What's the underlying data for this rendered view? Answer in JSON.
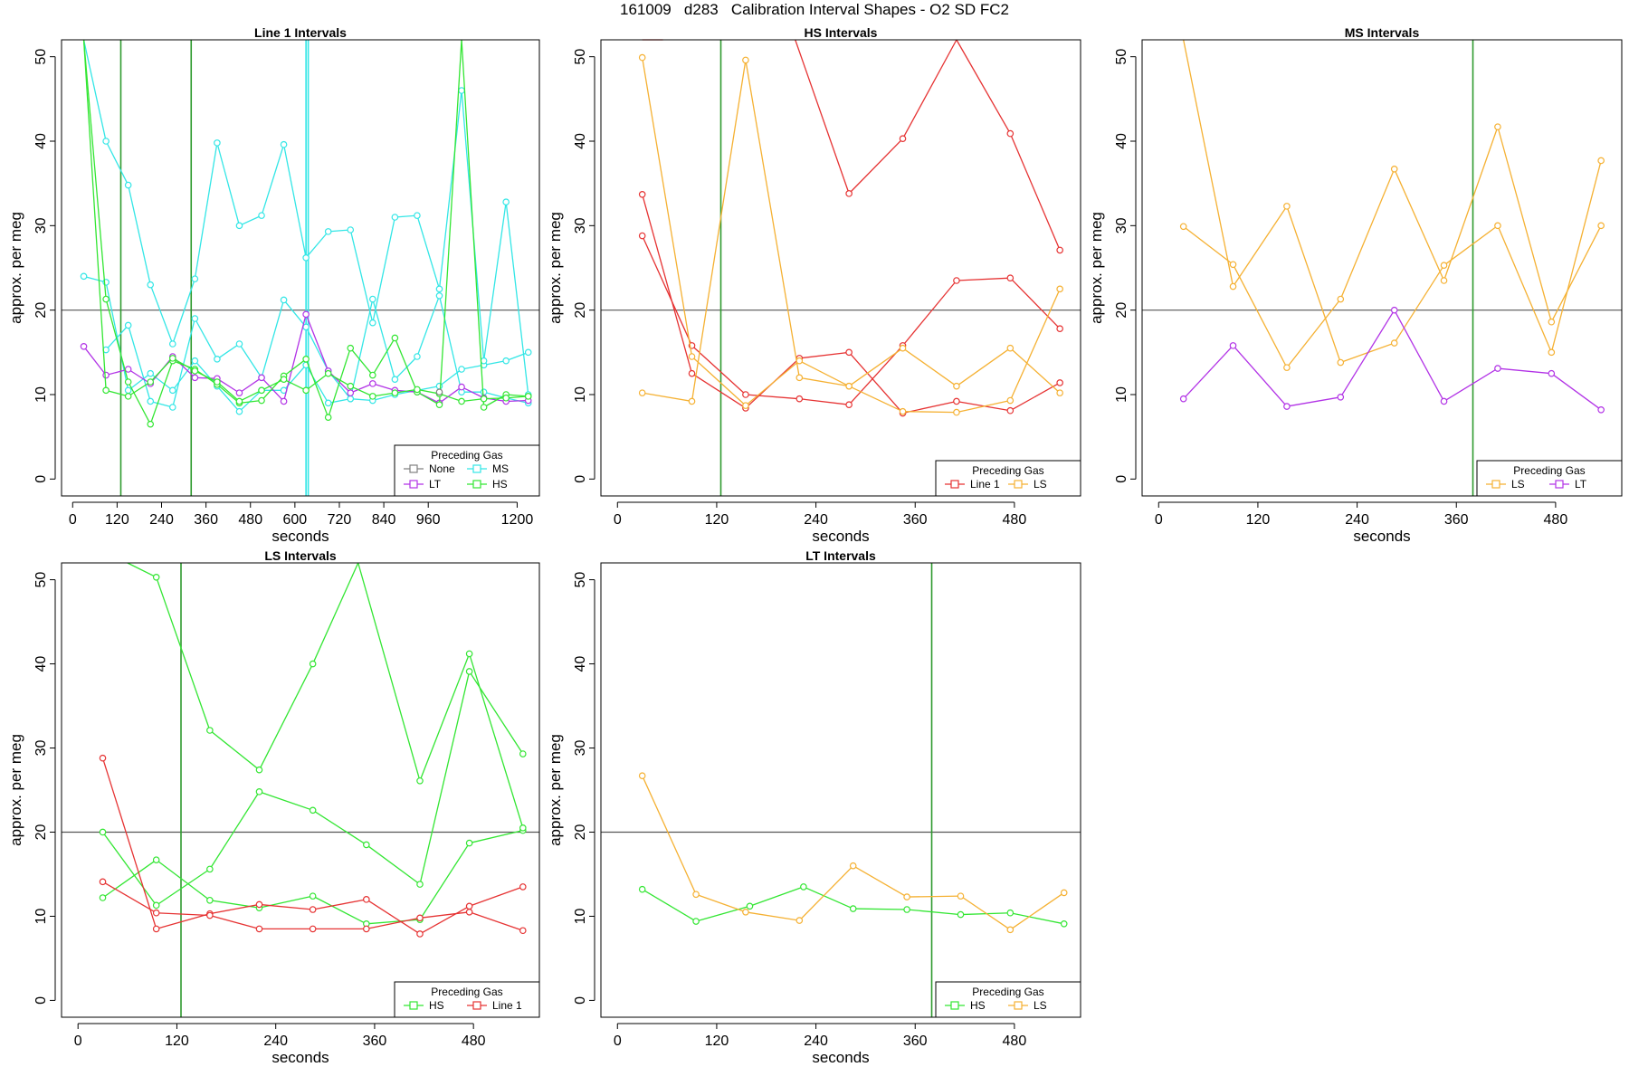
{
  "figure_title": "161009   d283   Calibration Interval Shapes - O2 SD FC2",
  "colors": {
    "None": "#808080",
    "MS": "#33e6e6",
    "LT": "#b233e6",
    "HS": "#33e633",
    "Line 1": "#e63333",
    "LS": "#f5b133",
    "reference_line": "#555555",
    "vertical_marker": "#2e9a2e"
  },
  "chart_data": [
    {
      "type": "line",
      "title": "Line 1 Intervals",
      "xlabel": "seconds",
      "ylabel": "approx. per meg",
      "xlim": [
        -30,
        1260
      ],
      "ylim": [
        -2,
        52
      ],
      "xticks": [
        0,
        120,
        240,
        360,
        480,
        600,
        720,
        840,
        960,
        1200
      ],
      "yticks": [
        0,
        10,
        20,
        30,
        40,
        50
      ],
      "hline": 20,
      "vlines": [
        {
          "x": 130,
          "color": "vertical_marker"
        },
        {
          "x": 320,
          "color": "vertical_marker"
        },
        {
          "x": 630,
          "color": "MS"
        },
        {
          "x": 636,
          "color": "MS"
        }
      ],
      "legend": {
        "title": "Preceding Gas",
        "position": "bottom-right",
        "columns": 2,
        "entries": [
          "None",
          "MS",
          "LT",
          "HS"
        ]
      },
      "series": [
        {
          "name": "MS",
          "x": [
            30,
            90,
            150,
            210,
            270,
            330,
            390,
            450,
            510,
            570,
            630,
            690,
            750,
            810,
            870,
            930,
            990,
            1050,
            1110,
            1170,
            1230
          ],
          "values": [
            24,
            23.3,
            10.5,
            12.5,
            10.5,
            14,
            11,
            8,
            10.5,
            10.5,
            13.5,
            9,
            9.5,
            9.3,
            10,
            10.5,
            11,
            13,
            13.5,
            14,
            15
          ]
        },
        {
          "name": "MS",
          "x": [
            30,
            90,
            150,
            210,
            270,
            330,
            390,
            450,
            510,
            570,
            630,
            690,
            750,
            810,
            870,
            930,
            990,
            1050,
            1110,
            1170,
            1230
          ],
          "values": [
            52,
            40,
            34.8,
            23,
            16,
            23.7,
            39.8,
            30,
            31.2,
            39.6,
            26.2,
            29.3,
            29.5,
            18.5,
            31,
            31.2,
            22.5,
            46,
            14,
            32.8,
            10
          ]
        },
        {
          "name": "MS",
          "x": [
            90,
            150,
            210,
            270,
            330,
            390,
            450,
            510,
            570,
            630,
            690,
            750,
            810,
            870,
            930,
            990,
            1050,
            1110,
            1170,
            1230
          ],
          "values": [
            15.3,
            18.2,
            9.2,
            8.5,
            19,
            14.2,
            16,
            12,
            21.2,
            18,
            12.8,
            9.5,
            21.3,
            11.8,
            14.5,
            21.7,
            10.3,
            10.3,
            9.6,
            9
          ]
        },
        {
          "name": "LT",
          "x": [
            30,
            90,
            150,
            210,
            270,
            330,
            390,
            450,
            510,
            570,
            630,
            690,
            750,
            810,
            870,
            930,
            990,
            1050,
            1110,
            1170,
            1230
          ],
          "values": [
            15.7,
            12.3,
            13,
            11.3,
            14.5,
            12,
            11.9,
            10.2,
            12,
            9.2,
            19.5,
            12.8,
            10.2,
            11.3,
            10.5,
            10.3,
            9,
            10.9,
            9.6,
            9.2,
            9.3
          ]
        },
        {
          "name": "HS",
          "x": [
            30,
            90,
            150,
            210,
            270,
            330,
            390,
            450,
            510,
            570,
            630,
            690,
            750,
            810,
            870,
            930,
            990,
            1050,
            1110,
            1170,
            1230
          ],
          "values": [
            52,
            21.3,
            11.5,
            6.5,
            14,
            13,
            11.2,
            9,
            9.3,
            12.2,
            14.2,
            7.3,
            15.5,
            12.3,
            16.7,
            10.3,
            8.8,
            52,
            8.5,
            10,
            9.8
          ]
        },
        {
          "name": "HS",
          "x": [
            30,
            90,
            150,
            210,
            270,
            330,
            390,
            450,
            510,
            570,
            630,
            690,
            750,
            810,
            870,
            930,
            990,
            1050,
            1110,
            1170,
            1230
          ],
          "values": [
            52,
            10.5,
            9.8,
            11.5,
            14.3,
            12.8,
            11.5,
            9.2,
            10.5,
            11.8,
            10.5,
            12.5,
            11,
            9.8,
            10.2,
            10.6,
            10.1,
            9.2,
            9.5,
            9.6,
            9.8
          ]
        },
        {
          "name": "None",
          "x": [
            990
          ],
          "values": [
            10.3
          ]
        }
      ]
    },
    {
      "type": "line",
      "title": "HS Intervals",
      "xlabel": "seconds",
      "ylabel": "approx. per meg",
      "xlim": [
        -20,
        560
      ],
      "ylim": [
        -2,
        52
      ],
      "xticks": [
        0,
        120,
        240,
        360,
        480
      ],
      "yticks": [
        0,
        10,
        20,
        30,
        40,
        50
      ],
      "hline": 20,
      "vlines": [
        {
          "x": 125,
          "color": "vertical_marker"
        }
      ],
      "legend": {
        "title": "Preceding Gas",
        "position": "bottom-right",
        "columns": 2,
        "entries": [
          "Line 1",
          "LS"
        ]
      },
      "series": [
        {
          "name": "Line 1",
          "x": [
            30,
            90,
            155,
            220,
            280,
            345,
            410,
            475,
            535
          ],
          "values": [
            33.7,
            12.5,
            8.4,
            14.3,
            15,
            7.8,
            9.2,
            8.1,
            11.4
          ]
        },
        {
          "name": "Line 1",
          "x": [
            30,
            90,
            155,
            220,
            280,
            345,
            410,
            475,
            535
          ],
          "values": [
            28.8,
            15.8,
            10,
            9.5,
            8.8,
            15.8,
            23.5,
            23.8,
            17.8
          ]
        },
        {
          "name": "Line 1",
          "x": [
            30,
            55
          ],
          "values": [
            52,
            52
          ]
        },
        {
          "name": "Line 1",
          "x": [
            215,
            280,
            345,
            410,
            475,
            535
          ],
          "values": [
            52,
            33.8,
            40.3,
            52,
            40.9,
            27.1
          ]
        },
        {
          "name": "LS",
          "x": [
            30,
            90,
            155,
            220,
            280,
            345,
            410,
            475,
            535
          ],
          "values": [
            10.2,
            9.2,
            49.6,
            12,
            11,
            15.5,
            11,
            15.5,
            10.2
          ]
        },
        {
          "name": "LS",
          "x": [
            30,
            90,
            155,
            220,
            280,
            345,
            410,
            475,
            535
          ],
          "values": [
            49.9,
            14.5,
            8.7,
            14,
            11,
            8,
            7.9,
            9.3,
            22.5
          ]
        }
      ]
    },
    {
      "type": "line",
      "title": "MS Intervals",
      "xlabel": "seconds",
      "ylabel": "approx. per meg",
      "xlim": [
        -20,
        560
      ],
      "ylim": [
        -2,
        52
      ],
      "xticks": [
        0,
        120,
        240,
        360,
        480
      ],
      "yticks": [
        0,
        10,
        20,
        30,
        40,
        50
      ],
      "hline": 20,
      "vlines": [
        {
          "x": 380,
          "color": "vertical_marker"
        }
      ],
      "legend": {
        "title": "Preceding Gas",
        "position": "bottom-right",
        "columns": 2,
        "entries": [
          "LS",
          "LT"
        ]
      },
      "series": [
        {
          "name": "LS",
          "x": [
            30,
            90,
            155,
            220,
            285,
            345,
            410,
            475,
            535
          ],
          "values": [
            29.9,
            25.4,
            13.2,
            21.3,
            36.7,
            23.5,
            41.7,
            18.6,
            30
          ]
        },
        {
          "name": "LS",
          "x": [
            30,
            90,
            155,
            220,
            285,
            345,
            410,
            475,
            535
          ],
          "values": [
            52,
            22.8,
            32.3,
            13.8,
            16.1,
            25.3,
            30,
            15,
            37.7
          ]
        },
        {
          "name": "LT",
          "x": [
            30,
            90,
            155,
            220,
            285,
            345,
            410,
            475,
            535
          ],
          "values": [
            9.5,
            15.8,
            8.6,
            9.7,
            20,
            9.2,
            13.1,
            12.5,
            8.2
          ]
        }
      ]
    },
    {
      "type": "line",
      "title": "LS Intervals",
      "xlabel": "seconds",
      "ylabel": "approx. per meg",
      "xlim": [
        -20,
        560
      ],
      "ylim": [
        -2,
        52
      ],
      "xticks": [
        0,
        120,
        240,
        360,
        480
      ],
      "yticks": [
        0,
        10,
        20,
        30,
        40,
        50
      ],
      "hline": 20,
      "vlines": [
        {
          "x": 125,
          "color": "vertical_marker"
        }
      ],
      "legend": {
        "title": "Preceding Gas",
        "position": "bottom-right",
        "columns": 2,
        "entries": [
          "HS",
          "Line 1"
        ]
      },
      "series": [
        {
          "name": "HS",
          "x": [
            30,
            95,
            160,
            220,
            285,
            350,
            415,
            475,
            540
          ],
          "values": [
            20,
            11.3,
            15.6,
            24.8,
            22.6,
            18.5,
            13.8,
            39.1,
            29.3
          ]
        },
        {
          "name": "HS",
          "x": [
            30,
            95,
            160,
            220,
            285,
            350,
            415,
            475,
            540
          ],
          "values": [
            12.2,
            16.7,
            11.9,
            11,
            12.4,
            9.1,
            9.6,
            18.7,
            20.2
          ]
        },
        {
          "name": "HS",
          "x": [
            60,
            95,
            160,
            220,
            285,
            340,
            415,
            475,
            540
          ],
          "values": [
            52,
            50.3,
            32.1,
            27.4,
            40,
            52,
            26.1,
            41.2,
            20.5
          ]
        },
        {
          "name": "Line 1",
          "x": [
            30,
            95,
            160,
            220,
            285,
            350,
            415,
            475,
            540
          ],
          "values": [
            28.8,
            8.5,
            10.3,
            11.4,
            10.8,
            12,
            7.9,
            11.2,
            13.5
          ]
        },
        {
          "name": "Line 1",
          "x": [
            30,
            95,
            160,
            220,
            285,
            350,
            415,
            475,
            540
          ],
          "values": [
            14.1,
            10.4,
            10.1,
            8.5,
            8.5,
            8.5,
            9.8,
            10.5,
            8.3
          ]
        }
      ]
    },
    {
      "type": "line",
      "title": "LT Intervals",
      "xlabel": "seconds",
      "ylabel": "approx. per meg",
      "xlim": [
        -20,
        560
      ],
      "ylim": [
        -2,
        52
      ],
      "xticks": [
        0,
        120,
        240,
        360,
        480
      ],
      "yticks": [
        0,
        10,
        20,
        30,
        40,
        50
      ],
      "hline": 20,
      "vlines": [
        {
          "x": 380,
          "color": "vertical_marker"
        }
      ],
      "legend": {
        "title": "Preceding Gas",
        "position": "bottom-right",
        "columns": 2,
        "entries": [
          "HS",
          "LS"
        ]
      },
      "series": [
        {
          "name": "HS",
          "x": [
            30,
            95,
            160,
            225,
            285,
            350,
            415,
            475,
            540
          ],
          "values": [
            13.2,
            9.4,
            11.2,
            13.5,
            10.9,
            10.8,
            10.2,
            10.4,
            9.1
          ]
        },
        {
          "name": "LS",
          "x": [
            30,
            95,
            155,
            220,
            285,
            350,
            415,
            475,
            540
          ],
          "values": [
            26.7,
            12.6,
            10.5,
            9.5,
            16,
            12.3,
            12.4,
            8.4,
            12.8
          ]
        }
      ]
    }
  ]
}
